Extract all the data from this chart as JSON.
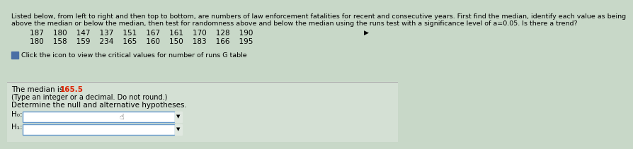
{
  "background_color": "#c8d8c8",
  "upper_bg": "#c8d8c8",
  "lower_bg": "#d4e0d4",
  "title_line1": "Listed below, from left to right and then top to bottom, are numbers of law enforcement fatalities for recent and consecutive years. First find the median, identify each value as being",
  "title_line2": "above the median or below the median, then test for randomness above and below the median using the runs test with a significance level of a=0.05. Is there a trend?",
  "data_row1": "187    180    147    137    151    167    161    170    128    190",
  "data_row1_arrow": "▶",
  "data_row2": "180    158    159    234    165    160    150    183    166    195",
  "click_text": "Click the icon to view the critical values for number of runs G table",
  "median_label": "The median is ",
  "median_value": "165.5",
  "median_note": "(Type an integer or a decimal. Do not round.)",
  "determine_text": "Determine the null and alternative hypotheses.",
  "h0_label": "H₀:",
  "h1_label": "H₁:",
  "box_color": "#ffffff",
  "box_border": "#6699cc",
  "text_color": "#000000",
  "median_value_color": "#dd2200",
  "title_fontsize": 6.8,
  "data_fontsize": 7.5,
  "body_fontsize": 7.5,
  "small_fontsize": 7.0
}
